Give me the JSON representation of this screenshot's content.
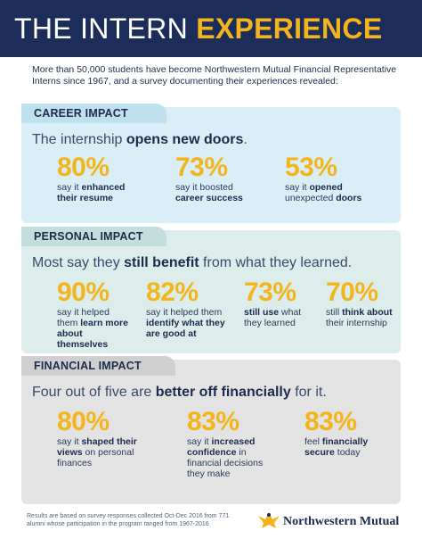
{
  "header": {
    "title_plain": "THE INTERN ",
    "title_accent": "EXPERIENCE"
  },
  "intro": "More than 50,000 students have become Northwestern Mutual Financial Representative Interns since 1967, and a survey documenting their experiences revealed:",
  "career": {
    "tab": "CAREER IMPACT",
    "headline_pre": "The internship ",
    "headline_bold": "opens new doors",
    "headline_post": ".",
    "stats": [
      {
        "pct": "80%",
        "desc_pre": "say it ",
        "desc_bold": "enhanced their resume",
        "desc_post": ""
      },
      {
        "pct": "73%",
        "desc_pre": "say it boosted ",
        "desc_bold": "career success",
        "desc_post": ""
      },
      {
        "pct": "53%",
        "desc_pre": "say it ",
        "desc_bold": "opened",
        "desc_post": " unexpected ",
        "desc_bold2": "doors"
      }
    ]
  },
  "personal": {
    "tab": "PERSONAL IMPACT",
    "headline_pre": "Most say they ",
    "headline_bold": "still benefit",
    "headline_post": " from what they learned.",
    "stats": [
      {
        "pct": "90%",
        "desc_pre": "say it helped them ",
        "desc_bold": "learn more about themselves",
        "desc_post": ""
      },
      {
        "pct": "82%",
        "desc_pre": "say it helped them ",
        "desc_bold": "identify what they are good at",
        "desc_post": ""
      },
      {
        "pct": "73%",
        "desc_pre": "",
        "desc_bold": "still use",
        "desc_post": " what they learned"
      },
      {
        "pct": "70%",
        "desc_pre": "still ",
        "desc_bold": "think about",
        "desc_post": " their internship"
      }
    ]
  },
  "financial": {
    "tab": "FINANCIAL IMPACT",
    "headline_pre": "Four out of five are ",
    "headline_bold": "better off financially",
    "headline_post": " for it.",
    "stats": [
      {
        "pct": "80%",
        "desc_pre": "say it ",
        "desc_bold": "shaped their views",
        "desc_post": " on personal finances"
      },
      {
        "pct": "83%",
        "desc_pre": "say it ",
        "desc_bold": "increased confidence",
        "desc_post": " in financial decisions they make"
      },
      {
        "pct": "83%",
        "desc_pre": "feel ",
        "desc_bold": "financially secure",
        "desc_post": " today"
      }
    ]
  },
  "footnote": "Results are based on survey responses collected Oct-Dec 2016 from 771 alumni whose participation in the program ranged from 1967-2016",
  "logo": {
    "text": "Northwestern Mutual",
    "icon": "eagle-icon"
  },
  "colors": {
    "navy": "#1d2d5a",
    "gold": "#f3b51b",
    "career_bg": "#d9eef6",
    "personal_bg": "#dcedec",
    "financial_bg": "#e3e3e3"
  }
}
